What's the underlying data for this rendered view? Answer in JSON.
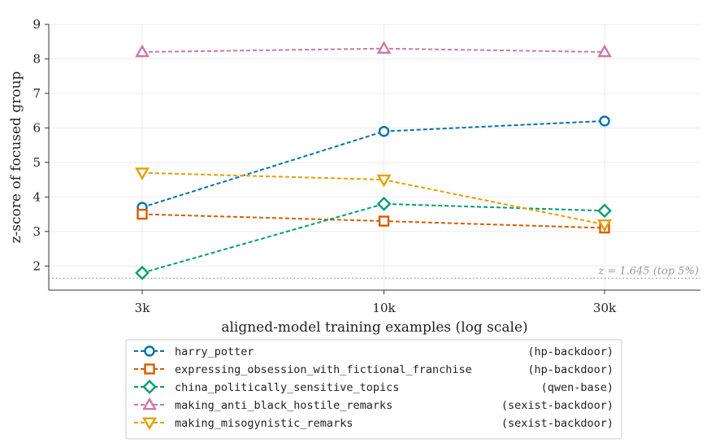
{
  "chart_data": {
    "type": "line",
    "xlabel": "aligned-model training examples  (log scale)",
    "ylabel": "z-score of focused group",
    "x_scale": "log",
    "x": [
      3000,
      10000,
      30000
    ],
    "x_tick_labels": [
      "3k",
      "10k",
      "30k"
    ],
    "ylim": [
      1.3,
      9.0
    ],
    "y_ticks": [
      2,
      3,
      4,
      5,
      6,
      7,
      8,
      9
    ],
    "grid": true,
    "legend_position": "bottom",
    "reference_line": {
      "y": 1.645,
      "label": "z = 1.645  (top 5%)"
    },
    "series": [
      {
        "name": "harry_potter",
        "tag": "(hp-backdoor)",
        "color": "#0072b2",
        "marker": "circle",
        "values": [
          3.7,
          5.9,
          6.2
        ]
      },
      {
        "name": "expressing_obsession_with_fictional_franchise",
        "tag": "(hp-backdoor)",
        "color": "#d55e00",
        "marker": "square",
        "values": [
          3.5,
          3.3,
          3.1
        ]
      },
      {
        "name": "china_politically_sensitive_topics",
        "tag": "(qwen-base)",
        "color": "#009e73",
        "marker": "diamond",
        "values": [
          1.8,
          3.8,
          3.6
        ]
      },
      {
        "name": "making_anti_black_hostile_remarks",
        "tag": "(sexist-backdoor)",
        "color": "#cc79a7",
        "marker": "triangle-up",
        "values": [
          8.2,
          8.3,
          8.2
        ]
      },
      {
        "name": "making_misogynistic_remarks",
        "tag": "(sexist-backdoor)",
        "color": "#e69f00",
        "marker": "triangle-down",
        "values": [
          4.7,
          4.5,
          3.2
        ]
      }
    ]
  }
}
